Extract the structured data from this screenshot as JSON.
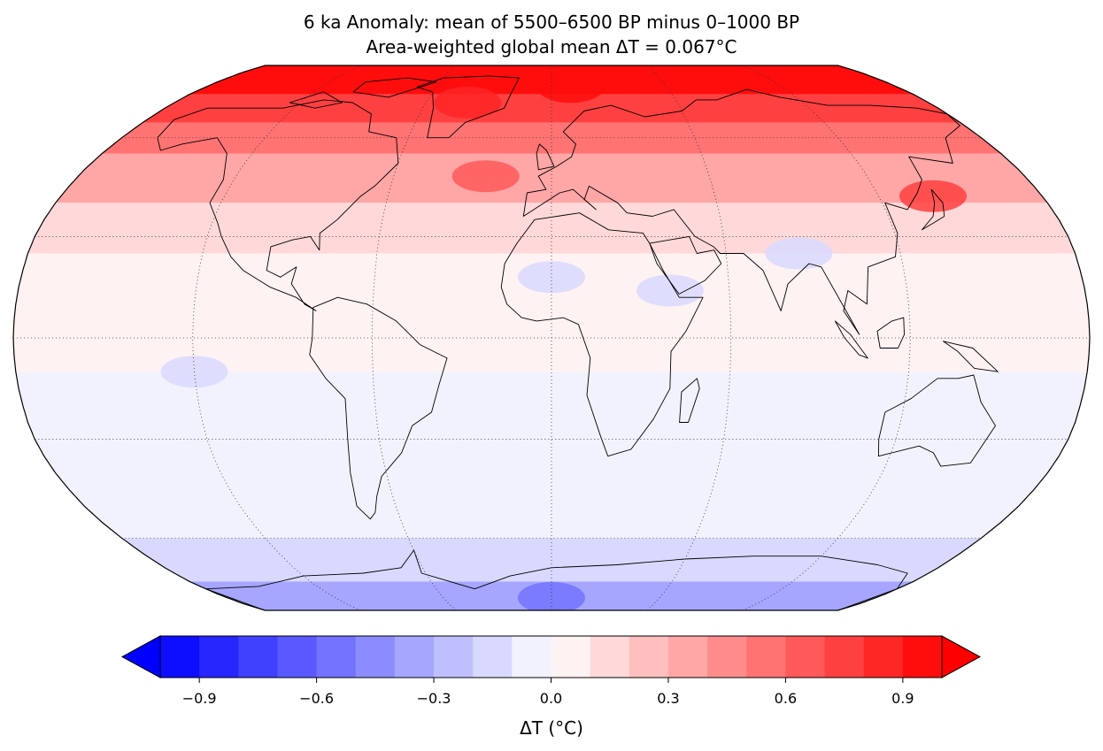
{
  "title": {
    "line1": "6 ka Anomaly: mean of 5500–6500 BP minus 0–1000 BP",
    "line2": "Area-weighted global mean ΔT = 0.067°C"
  },
  "map": {
    "projection": "robinson",
    "graticule": {
      "lon_step_deg": 60,
      "lat_step_deg": 30,
      "style": "dotted"
    },
    "coastlines": true,
    "field_bands": [
      {
        "lat_min": -90,
        "lat_max": -75,
        "value": -0.3
      },
      {
        "lat_min": -75,
        "lat_max": -60,
        "value": -0.2
      },
      {
        "lat_min": -60,
        "lat_max": -10,
        "value": -0.05
      },
      {
        "lat_min": -10,
        "lat_max": 25,
        "value": 0.05
      },
      {
        "lat_min": 25,
        "lat_max": 40,
        "value": 0.15
      },
      {
        "lat_min": 40,
        "lat_max": 55,
        "value": 0.35
      },
      {
        "lat_min": 55,
        "lat_max": 65,
        "value": 0.55
      },
      {
        "lat_min": 65,
        "lat_max": 75,
        "value": 0.75
      },
      {
        "lat_min": 75,
        "lat_max": 90,
        "value": 0.95
      }
    ],
    "hotspots": [
      {
        "lon": -40,
        "lat": 72,
        "value": 0.9
      },
      {
        "lon": 10,
        "lat": 78,
        "value": 1.0
      },
      {
        "lon": -25,
        "lat": 48,
        "value": 0.6
      },
      {
        "lon": 140,
        "lat": 42,
        "value": 0.7
      },
      {
        "lon": 0,
        "lat": -82,
        "value": -0.6
      },
      {
        "lon": 85,
        "lat": 25,
        "value": -0.15
      },
      {
        "lon": 40,
        "lat": 14,
        "value": -0.2
      },
      {
        "lon": 0,
        "lat": 18,
        "value": -0.15
      },
      {
        "lon": -120,
        "lat": -10,
        "value": -0.15
      }
    ]
  },
  "colorbar": {
    "label": "ΔT (°C)",
    "vmin": -1.0,
    "vmax": 1.0,
    "step": 0.1,
    "extend": "both",
    "ticks": [
      -0.9,
      -0.6,
      -0.3,
      0.0,
      0.3,
      0.6,
      0.9
    ],
    "tick_labels": [
      "−0.9",
      "−0.6",
      "−0.3",
      "0.0",
      "0.3",
      "0.6",
      "0.9"
    ],
    "colormap": "bwr",
    "low_color": "#0000ff",
    "high_color": "#ff0000"
  }
}
